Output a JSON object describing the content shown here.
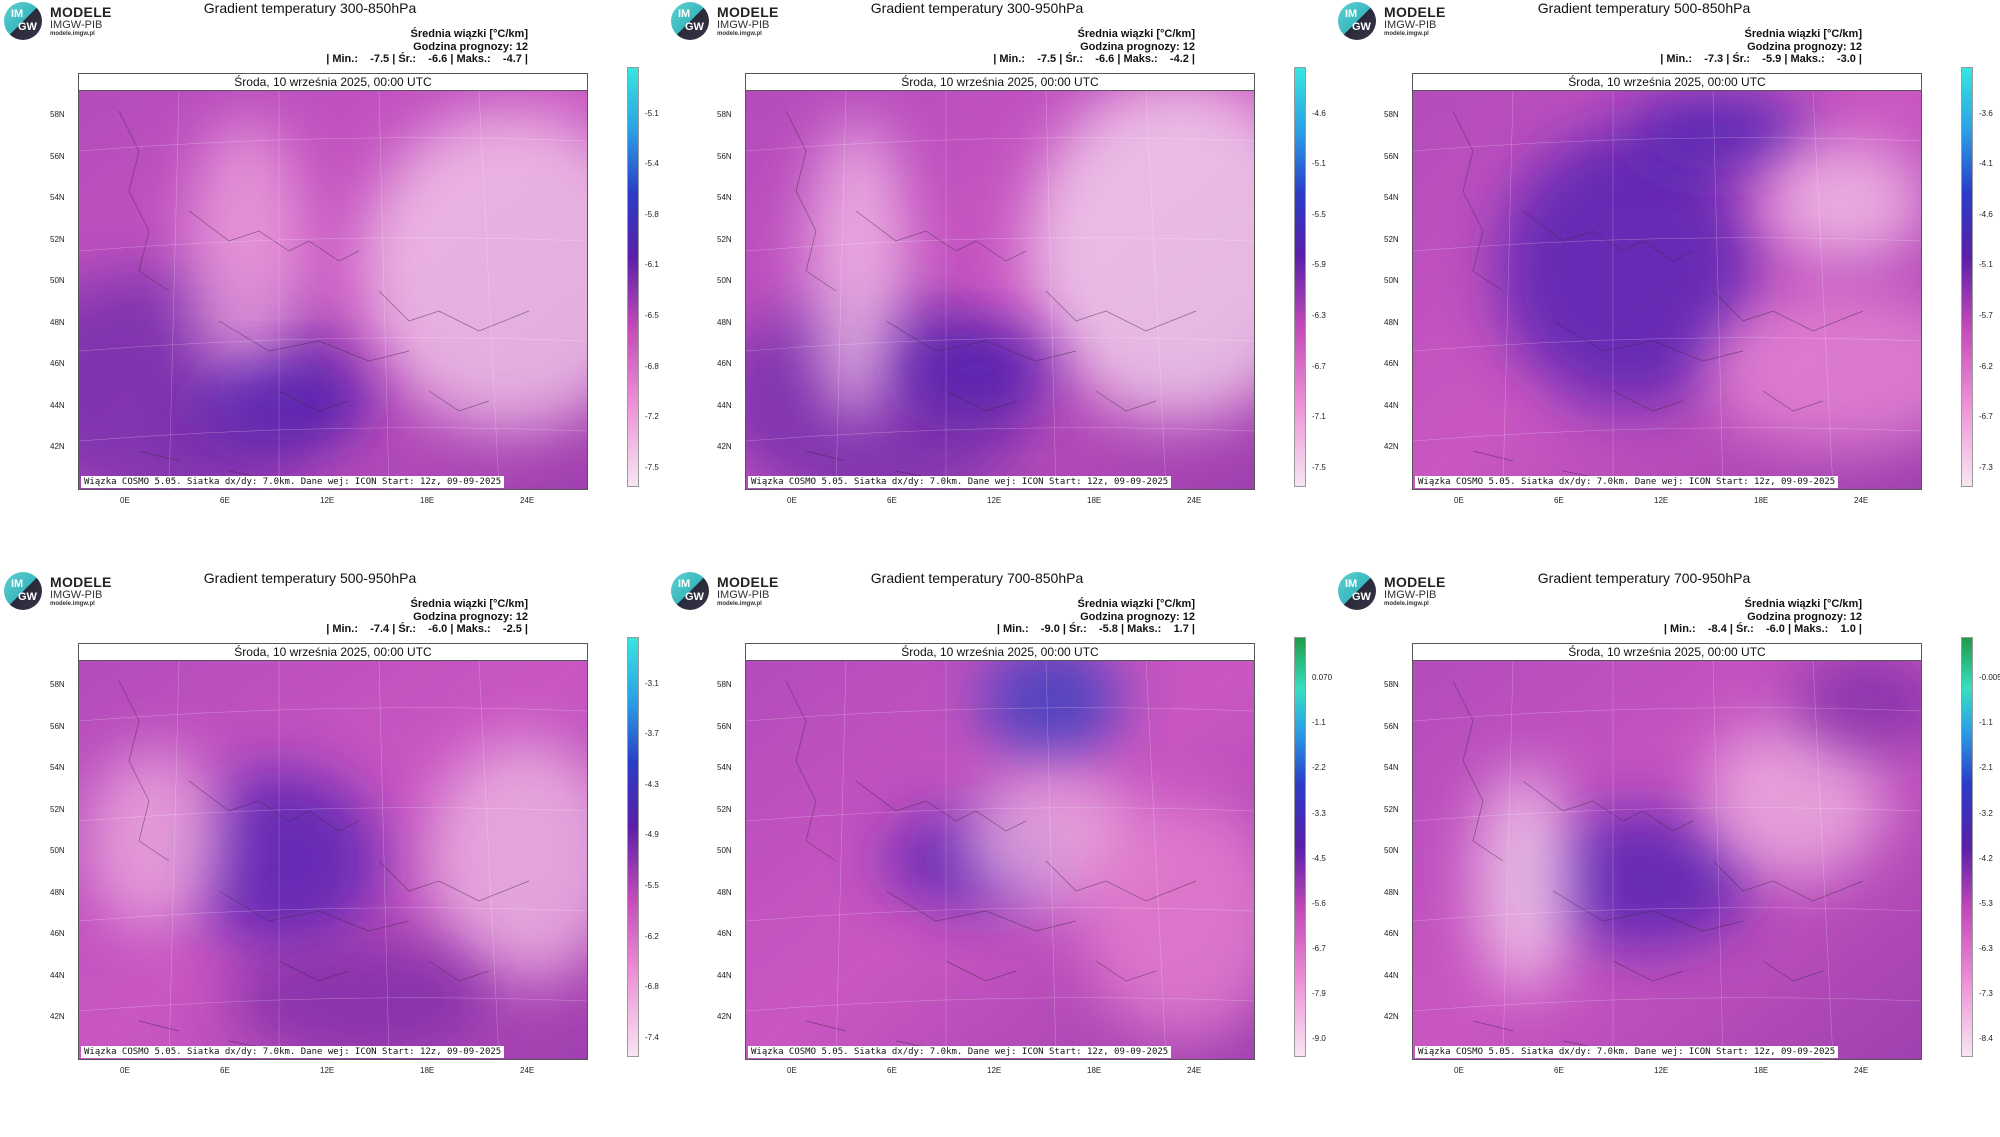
{
  "logo": {
    "line1": "MODELE",
    "line2": "IMGW-PIB",
    "line3": "modele.imgw.pl",
    "mark_top": "IM",
    "mark_bottom": "GW"
  },
  "shared": {
    "subtitle1": "Średnia wiązki [°C/km]",
    "subtitle2": "Godzina prognozy: 12",
    "date": "Środa, 10 września 2025, 00:00 UTC",
    "footer": "Wiązka COSMO 5.05. Siatka dx/dy: 7.0km. Dane wej: ICON Start: 12z, 09-09-2025",
    "lat_labels": [
      "58N",
      "56N",
      "54N",
      "52N",
      "50N",
      "48N",
      "46N",
      "44N",
      "42N"
    ],
    "lon_labels": [
      "0E",
      "6E",
      "12E",
      "18E",
      "24E"
    ]
  },
  "colors": {
    "pink_light": "#f3c6e6",
    "pink": "#e25fc4",
    "magenta": "#b03ab0",
    "purple": "#7a2aa6",
    "blue": "#3a1fb0",
    "cyan": "#37e0e6"
  },
  "panels": [
    {
      "title": "Gradient temperatury 300-850hPa",
      "stats": "| Min.:    -7.5 | Śr.:    -6.6 | Maks.:    -4.7 |",
      "cbar": [
        "-5.1",
        "-5.4",
        "-5.8",
        "-6.1",
        "-6.5",
        "-6.8",
        "-7.2",
        "-7.5"
      ],
      "cbar_top": "cyan"
    },
    {
      "title": "Gradient temperatury 300-950hPa",
      "stats": "| Min.:    -7.5 | Śr.:    -6.6 | Maks.:    -4.2 |",
      "cbar": [
        "-4.6",
        "-5.1",
        "-5.5",
        "-5.9",
        "-6.3",
        "-6.7",
        "-7.1",
        "-7.5"
      ],
      "cbar_top": "cyan"
    },
    {
      "title": "Gradient temperatury 500-850hPa",
      "stats": "| Min.:    -7.3 | Śr.:    -5.9 | Maks.:    -3.0 |",
      "cbar": [
        "-3.6",
        "-4.1",
        "-4.6",
        "-5.1",
        "-5.7",
        "-6.2",
        "-6.7",
        "-7.3"
      ],
      "cbar_top": "cyan"
    },
    {
      "title": "Gradient temperatury 500-950hPa",
      "stats": "| Min.:    -7.4 | Śr.:    -6.0 | Maks.:    -2.5 |",
      "cbar": [
        "-3.1",
        "-3.7",
        "-4.3",
        "-4.9",
        "-5.5",
        "-6.2",
        "-6.8",
        "-7.4"
      ],
      "cbar_top": "cyan"
    },
    {
      "title": "Gradient temperatury 700-850hPa",
      "stats": "| Min.:    -9.0 | Śr.:    -5.8 | Maks.:    1.7 |",
      "cbar": [
        "0.070",
        "-1.1",
        "-2.2",
        "-3.3",
        "-4.5",
        "-5.6",
        "-6.7",
        "-7.9",
        "-9.0"
      ],
      "cbar_top": "green"
    },
    {
      "title": "Gradient temperatury 700-950hPa",
      "stats": "| Min.:    -8.4 | Śr.:    -6.0 | Maks.:    1.0 |",
      "cbar": [
        "-0.005",
        "-1.1",
        "-2.1",
        "-3.2",
        "-4.2",
        "-5.3",
        "-6.3",
        "-7.3",
        "-8.4"
      ],
      "cbar_top": "green"
    }
  ]
}
